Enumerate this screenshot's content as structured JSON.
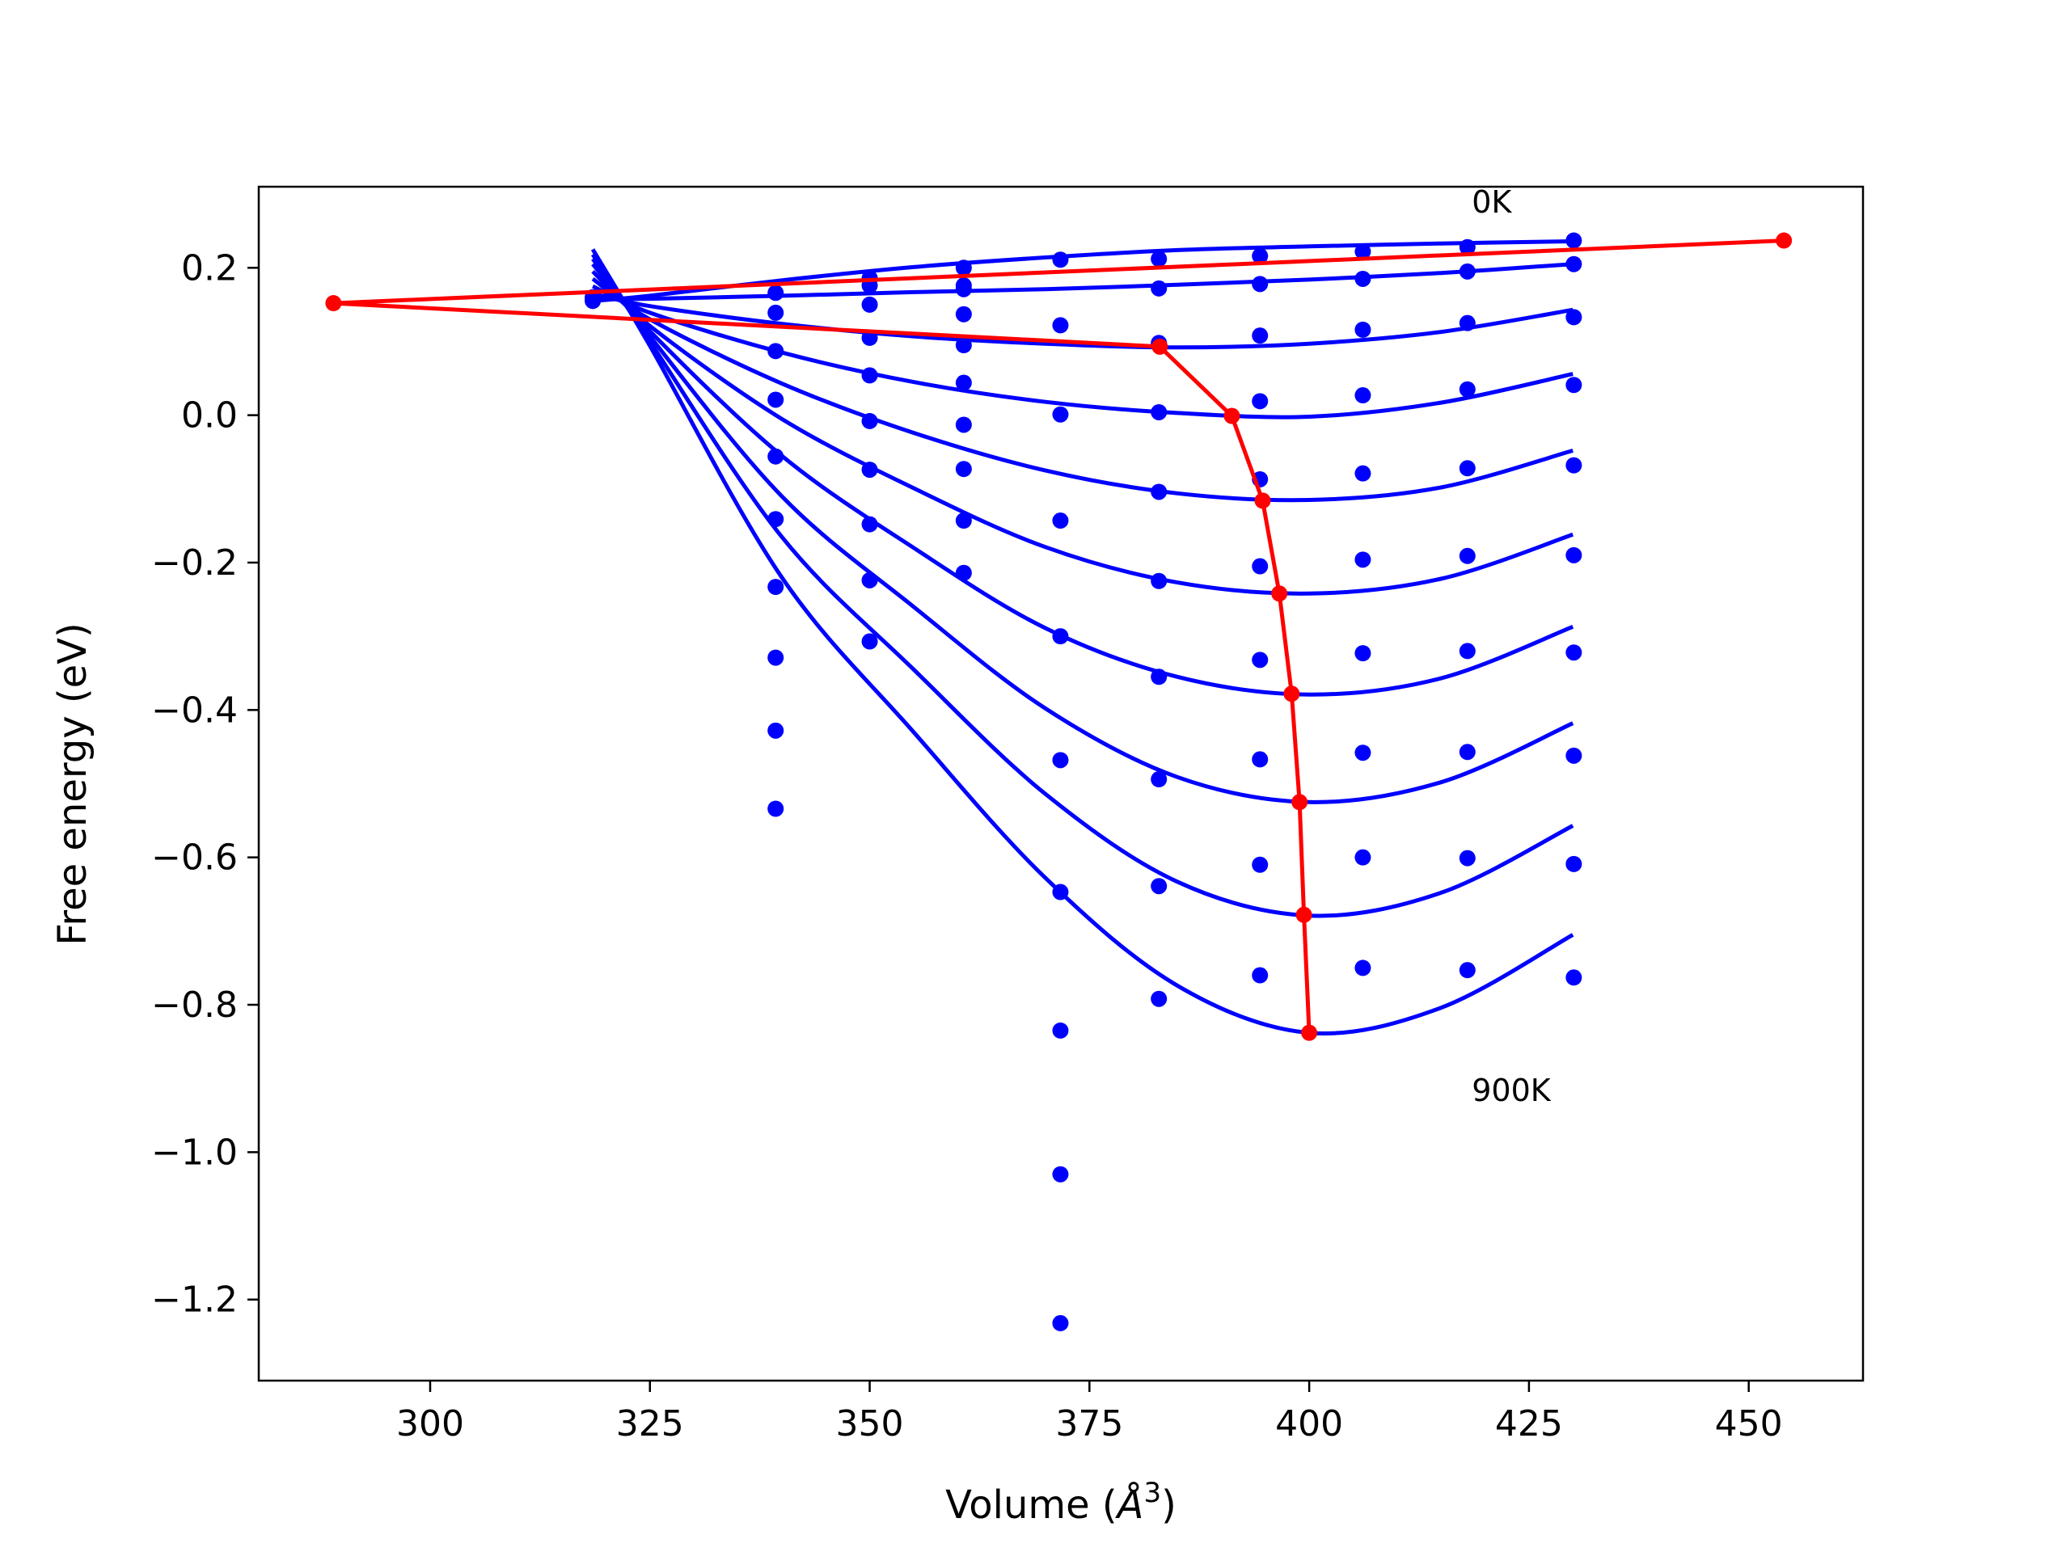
{
  "chart_data": {
    "type": "line",
    "title": "",
    "xlabel": "Volume (Å³)",
    "xlabel_main": "Volume (",
    "xlabel_unit": "Å",
    "xlabel_sup": "3",
    "xlabel_close": ")",
    "ylabel": "Free energy (eV)",
    "xlim": [
      280.5,
      463.0
    ],
    "ylim": [
      -1.31,
      0.31
    ],
    "xticks": [
      {
        "value": 300,
        "label": "300"
      },
      {
        "value": 325,
        "label": "325"
      },
      {
        "value": 350,
        "label": "350"
      },
      {
        "value": 375,
        "label": "375"
      },
      {
        "value": 400,
        "label": "400"
      },
      {
        "value": 425,
        "label": "425"
      },
      {
        "value": 450,
        "label": "450"
      }
    ],
    "yticks": [
      {
        "value": 0.2,
        "label": "0.2"
      },
      {
        "value": 0.0,
        "label": "0.0"
      },
      {
        "value": -0.2,
        "label": "−0.2"
      },
      {
        "value": -0.4,
        "label": "−0.4"
      },
      {
        "value": -0.6,
        "label": "−0.6"
      },
      {
        "value": -0.8,
        "label": "−0.8"
      },
      {
        "value": -1.0,
        "label": "−1.0"
      },
      {
        "value": -1.2,
        "label": "−1.2"
      }
    ],
    "grid": false,
    "colors": {
      "fit": "#0000ff",
      "points": "#0000ff",
      "minima": "#ff0000",
      "axes": "#000000"
    },
    "annotations": [
      {
        "text": "0K",
        "x": 418.5,
        "y": 0.29
      },
      {
        "text": "900K",
        "x": 418.5,
        "y": -0.915
      }
    ],
    "fit_curves": [
      {
        "x": [
          318.5,
          325,
          340,
          355,
          370,
          385,
          400,
          415,
          430
        ],
        "y": [
          0.155,
          0.162,
          0.183,
          0.201,
          0.214,
          0.224,
          0.229,
          0.233,
          0.236
        ]
      },
      {
        "x": [
          318.5,
          325,
          340,
          355,
          370,
          385,
          400,
          415,
          430
        ],
        "y": [
          0.157,
          0.158,
          0.162,
          0.167,
          0.171,
          0.177,
          0.184,
          0.193,
          0.205
        ]
      },
      {
        "x": [
          318.5,
          325,
          340,
          355,
          370,
          385,
          400,
          415,
          430
        ],
        "y": [
          0.165,
          0.148,
          0.124,
          0.107,
          0.097,
          0.092,
          0.097,
          0.113,
          0.143
        ]
      },
      {
        "x": [
          318.5,
          325,
          340,
          355,
          370,
          385,
          400,
          415,
          430
        ],
        "y": [
          0.175,
          0.139,
          0.085,
          0.045,
          0.018,
          0.003,
          -0.002,
          0.017,
          0.056
        ]
      },
      {
        "x": [
          318.5,
          325,
          340,
          355,
          370,
          385,
          400,
          415,
          430
        ],
        "y": [
          0.185,
          0.13,
          0.043,
          -0.024,
          -0.075,
          -0.106,
          -0.115,
          -0.098,
          -0.048
        ]
      },
      {
        "x": [
          318.5,
          325,
          340,
          355,
          370,
          385,
          400,
          415,
          430
        ],
        "y": [
          0.195,
          0.121,
          -0.005,
          -0.099,
          -0.179,
          -0.227,
          -0.242,
          -0.222,
          -0.162
        ]
      },
      {
        "x": [
          318.5,
          325,
          340,
          355,
          370,
          385,
          400,
          415,
          430
        ],
        "y": [
          0.205,
          0.114,
          -0.055,
          -0.18,
          -0.289,
          -0.355,
          -0.379,
          -0.357,
          -0.287
        ]
      },
      {
        "x": [
          318.5,
          325,
          340,
          355,
          370,
          385,
          400,
          415,
          430
        ],
        "y": [
          0.212,
          0.107,
          -0.11,
          -0.26,
          -0.398,
          -0.491,
          -0.525,
          -0.498,
          -0.418
        ]
      },
      {
        "x": [
          318.5,
          325,
          340,
          355,
          370,
          385,
          400,
          415,
          430
        ],
        "y": [
          0.218,
          0.1,
          -0.165,
          -0.345,
          -0.514,
          -0.633,
          -0.679,
          -0.648,
          -0.557
        ]
      },
      {
        "x": [
          318.5,
          325,
          340,
          355,
          370,
          385,
          400,
          415,
          430
        ],
        "y": [
          0.225,
          0.094,
          -0.22,
          -0.43,
          -0.628,
          -0.774,
          -0.838,
          -0.804,
          -0.705
        ]
      }
    ],
    "points": [
      {
        "x": 318.5,
        "y": 0.155
      },
      {
        "x": 318.5,
        "y": 0.158
      },
      {
        "x": 318.5,
        "y": 0.16
      },
      {
        "x": 339.3,
        "y": 0.166
      },
      {
        "x": 339.3,
        "y": 0.139
      },
      {
        "x": 339.3,
        "y": 0.087
      },
      {
        "x": 339.3,
        "y": 0.021
      },
      {
        "x": 339.3,
        "y": -0.056
      },
      {
        "x": 339.3,
        "y": -0.141
      },
      {
        "x": 339.3,
        "y": -0.233
      },
      {
        "x": 339.3,
        "y": -0.329
      },
      {
        "x": 339.3,
        "y": -0.428
      },
      {
        "x": 339.3,
        "y": -0.534
      },
      {
        "x": 350.0,
        "y": 0.186
      },
      {
        "x": 350.0,
        "y": 0.176
      },
      {
        "x": 350.0,
        "y": 0.15
      },
      {
        "x": 350.0,
        "y": 0.105
      },
      {
        "x": 350.0,
        "y": 0.054
      },
      {
        "x": 350.0,
        "y": -0.008
      },
      {
        "x": 350.0,
        "y": -0.074
      },
      {
        "x": 350.0,
        "y": -0.148
      },
      {
        "x": 350.0,
        "y": -0.224
      },
      {
        "x": 350.0,
        "y": -0.307
      },
      {
        "x": 360.7,
        "y": 0.2
      },
      {
        "x": 360.7,
        "y": 0.176
      },
      {
        "x": 360.7,
        "y": 0.171
      },
      {
        "x": 360.7,
        "y": 0.137
      },
      {
        "x": 360.7,
        "y": 0.095
      },
      {
        "x": 360.7,
        "y": 0.044
      },
      {
        "x": 360.7,
        "y": -0.013
      },
      {
        "x": 360.7,
        "y": -0.073
      },
      {
        "x": 360.7,
        "y": -0.143
      },
      {
        "x": 360.7,
        "y": -0.214
      },
      {
        "x": 371.7,
        "y": 0.211
      },
      {
        "x": 371.7,
        "y": 0.122
      },
      {
        "x": 371.7,
        "y": 0.001
      },
      {
        "x": 371.7,
        "y": -0.143
      },
      {
        "x": 371.7,
        "y": -0.3
      },
      {
        "x": 371.7,
        "y": -0.468
      },
      {
        "x": 371.7,
        "y": -0.647
      },
      {
        "x": 371.7,
        "y": -0.835
      },
      {
        "x": 371.7,
        "y": -1.03
      },
      {
        "x": 371.7,
        "y": -1.232
      },
      {
        "x": 382.9,
        "y": 0.212
      },
      {
        "x": 382.9,
        "y": 0.172
      },
      {
        "x": 382.9,
        "y": 0.098
      },
      {
        "x": 382.9,
        "y": 0.004
      },
      {
        "x": 382.9,
        "y": -0.104
      },
      {
        "x": 382.9,
        "y": -0.225
      },
      {
        "x": 382.9,
        "y": -0.355
      },
      {
        "x": 382.9,
        "y": -0.494
      },
      {
        "x": 382.9,
        "y": -0.639
      },
      {
        "x": 382.9,
        "y": -0.792
      },
      {
        "x": 394.4,
        "y": 0.216
      },
      {
        "x": 394.4,
        "y": 0.178
      },
      {
        "x": 394.4,
        "y": 0.108
      },
      {
        "x": 394.4,
        "y": 0.019
      },
      {
        "x": 394.4,
        "y": -0.087
      },
      {
        "x": 394.4,
        "y": -0.205
      },
      {
        "x": 394.4,
        "y": -0.332
      },
      {
        "x": 394.4,
        "y": -0.467
      },
      {
        "x": 394.4,
        "y": -0.61
      },
      {
        "x": 394.4,
        "y": -0.76
      },
      {
        "x": 406.1,
        "y": 0.222
      },
      {
        "x": 406.1,
        "y": 0.185
      },
      {
        "x": 406.1,
        "y": 0.116
      },
      {
        "x": 406.1,
        "y": 0.027
      },
      {
        "x": 406.1,
        "y": -0.079
      },
      {
        "x": 406.1,
        "y": -0.196
      },
      {
        "x": 406.1,
        "y": -0.323
      },
      {
        "x": 406.1,
        "y": -0.458
      },
      {
        "x": 406.1,
        "y": -0.6
      },
      {
        "x": 406.1,
        "y": -0.75
      },
      {
        "x": 418.0,
        "y": 0.228
      },
      {
        "x": 418.0,
        "y": 0.195
      },
      {
        "x": 418.0,
        "y": 0.125
      },
      {
        "x": 418.0,
        "y": 0.035
      },
      {
        "x": 418.0,
        "y": -0.072
      },
      {
        "x": 418.0,
        "y": -0.191
      },
      {
        "x": 418.0,
        "y": -0.32
      },
      {
        "x": 418.0,
        "y": -0.457
      },
      {
        "x": 418.0,
        "y": -0.601
      },
      {
        "x": 418.0,
        "y": -0.753
      },
      {
        "x": 430.1,
        "y": 0.237
      },
      {
        "x": 430.1,
        "y": 0.205
      },
      {
        "x": 430.1,
        "y": 0.133
      },
      {
        "x": 430.1,
        "y": 0.041
      },
      {
        "x": 430.1,
        "y": -0.068
      },
      {
        "x": 430.1,
        "y": -0.19
      },
      {
        "x": 430.1,
        "y": -0.322
      },
      {
        "x": 430.1,
        "y": -0.462
      },
      {
        "x": 430.1,
        "y": -0.609
      },
      {
        "x": 430.1,
        "y": -0.763
      }
    ],
    "minima_line": {
      "x": [
        454.0,
        289.0,
        383.0,
        391.2,
        394.7,
        396.6,
        398.0,
        398.9,
        399.4,
        400.0
      ],
      "y": [
        0.237,
        0.152,
        0.093,
        -0.001,
        -0.116,
        -0.242,
        -0.378,
        -0.525,
        -0.678,
        -0.838
      ]
    }
  }
}
